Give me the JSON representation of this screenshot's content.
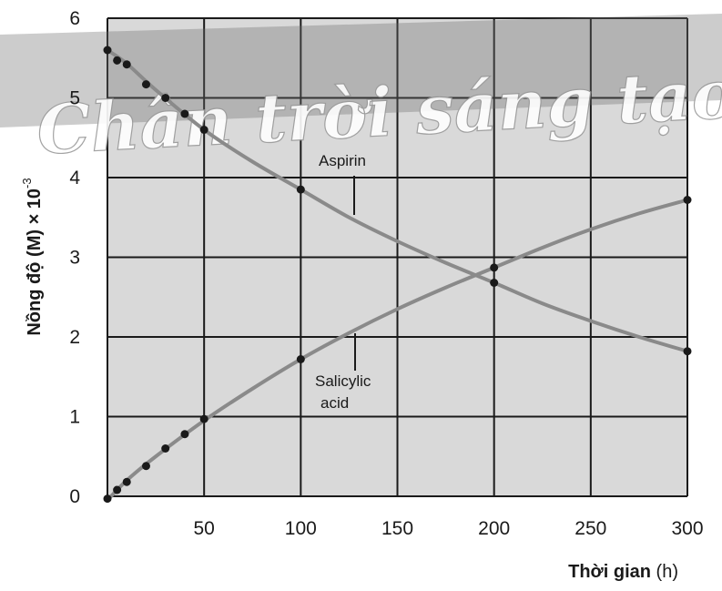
{
  "watermark": "Chân trời sáng tạo",
  "colors": {
    "plot_bg": "#d9d9d9",
    "grid": "#1a1a1a",
    "curve": "#8a8a8a",
    "marker": "#1a1a1a",
    "watermark_band": "#6e6e6e"
  },
  "chart_data": {
    "type": "line",
    "xlabel": {
      "bold": "Thời gian",
      "unit": " (h)"
    },
    "ylabel": {
      "main": "Nồng độ (M) × 10",
      "exponent": "-3"
    },
    "xlim": [
      0,
      300
    ],
    "ylim": [
      0,
      6
    ],
    "xticks": [
      50,
      100,
      150,
      200,
      250,
      300
    ],
    "yticks": [
      0,
      1,
      2,
      3,
      4,
      5,
      6
    ],
    "grid": true,
    "series": [
      {
        "name": "Aspirin",
        "curve": [
          [
            0,
            5.6
          ],
          [
            10,
            5.43
          ],
          [
            25,
            5.1
          ],
          [
            50,
            4.6
          ],
          [
            75,
            4.2
          ],
          [
            100,
            3.85
          ],
          [
            125,
            3.5
          ],
          [
            150,
            3.2
          ],
          [
            175,
            2.93
          ],
          [
            200,
            2.68
          ],
          [
            225,
            2.42
          ],
          [
            250,
            2.2
          ],
          [
            275,
            2.0
          ],
          [
            300,
            1.82
          ]
        ],
        "points": [
          [
            0,
            5.6
          ],
          [
            5,
            5.47
          ],
          [
            10,
            5.42
          ],
          [
            20,
            5.17
          ],
          [
            30,
            5.0
          ],
          [
            40,
            4.8
          ],
          [
            50,
            4.6
          ],
          [
            100,
            3.85
          ],
          [
            200,
            2.68
          ],
          [
            300,
            1.82
          ]
        ]
      },
      {
        "name": "Salicylic acid",
        "name_lines": [
          "Salicylic",
          "acid"
        ],
        "curve": [
          [
            0,
            -0.05
          ],
          [
            10,
            0.2
          ],
          [
            25,
            0.5
          ],
          [
            50,
            0.95
          ],
          [
            75,
            1.35
          ],
          [
            100,
            1.72
          ],
          [
            125,
            2.05
          ],
          [
            150,
            2.35
          ],
          [
            175,
            2.62
          ],
          [
            200,
            2.87
          ],
          [
            225,
            3.12
          ],
          [
            250,
            3.35
          ],
          [
            275,
            3.55
          ],
          [
            300,
            3.72
          ]
        ],
        "points": [
          [
            0,
            -0.03
          ],
          [
            5,
            0.08
          ],
          [
            10,
            0.18
          ],
          [
            20,
            0.38
          ],
          [
            30,
            0.6
          ],
          [
            40,
            0.78
          ],
          [
            50,
            0.97
          ],
          [
            100,
            1.72
          ],
          [
            200,
            2.87
          ],
          [
            300,
            3.72
          ]
        ]
      }
    ]
  }
}
